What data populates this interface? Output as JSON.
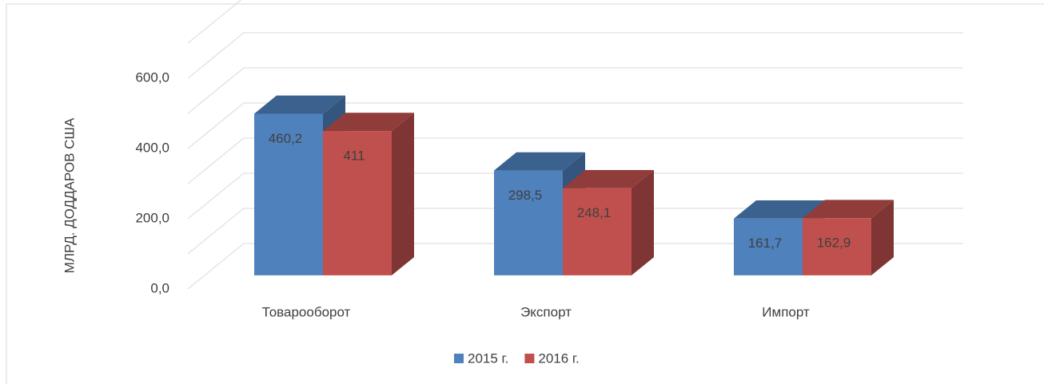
{
  "chart_data": {
    "type": "bar3d",
    "y_label": "МЛРД. ДОДДАРОВ США",
    "categories": [
      "Товарооборот",
      "Экспорт",
      "Импорт"
    ],
    "series": [
      {
        "name": "2015 г.",
        "color": "#4f81bd",
        "values": [
          460.2,
          298.5,
          161.7
        ],
        "value_labels": [
          "460,2",
          "298,5",
          "161,7"
        ]
      },
      {
        "name": "2016 г.",
        "color": "#c0504d",
        "values": [
          411,
          248.1,
          162.9
        ],
        "value_labels": [
          "411",
          "248,1",
          "162,9"
        ]
      }
    ],
    "ylim": [
      0,
      700
    ],
    "yticks": [
      {
        "value": 0,
        "label": "0,0"
      },
      {
        "value": 200,
        "label": "200,0"
      },
      {
        "value": 400,
        "label": "400,0"
      },
      {
        "value": 600,
        "label": "600,0"
      }
    ],
    "minor_yticks": [
      100,
      300,
      500,
      700
    ],
    "grid": true,
    "legend": "bottom"
  }
}
